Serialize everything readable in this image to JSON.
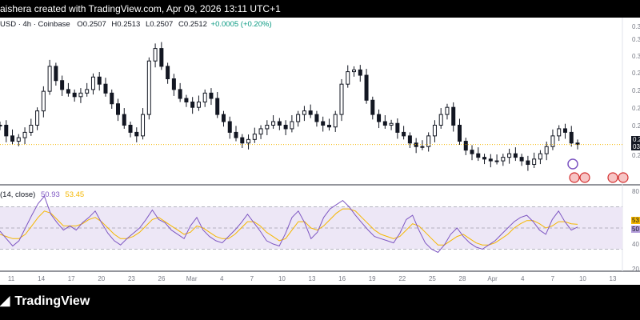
{
  "header": {
    "text": "aishera created with TradingView.com, Apr 09, 2026 13:11 UTC+1"
  },
  "legend": {
    "symbol": "USD · 4h · Coinbase",
    "open_label": "O",
    "open": "0.2507",
    "high_label": "H",
    "high": "0.2513",
    "low_label": "L",
    "low": "0.2507",
    "close_label": "C",
    "close": "0.2512",
    "change": "+0.0005 (+0.20%)"
  },
  "rsi_legend": {
    "name": "(14, close)",
    "rsi": "50.93",
    "ma": "53.45"
  },
  "price_tag": {
    "value": "0.2",
    "countdown": "03:"
  },
  "rsi_tags": {
    "ma": "53",
    "rsi": "50"
  },
  "footer": {
    "brand": "TradingView"
  },
  "colors": {
    "candles": "#131722",
    "rsi_line": "#7e57c2",
    "rsi_ma": "#f5b700",
    "rsi_band": "#ede7f6",
    "price_line": "#f5b700"
  },
  "chart_data": [
    {
      "type": "candlestick",
      "title": "",
      "price_axis_tick_labels": [
        "0.3",
        "0.3",
        "0.3",
        "0.2",
        "0.2",
        "0.2",
        "0.2",
        "0.2"
      ],
      "x_tick_labels": [
        "11",
        "14",
        "17",
        "20",
        "23",
        "26",
        "Mar",
        "4",
        "7",
        "10",
        "13",
        "16",
        "19",
        "22",
        "25",
        "28",
        "Apr",
        "4",
        "7",
        "10",
        "13"
      ],
      "close_trace": [
        0.262,
        0.256,
        0.253,
        0.255,
        0.258,
        0.262,
        0.27,
        0.281,
        0.295,
        0.287,
        0.282,
        0.28,
        0.278,
        0.28,
        0.282,
        0.289,
        0.285,
        0.28,
        0.274,
        0.268,
        0.262,
        0.258,
        0.256,
        0.268,
        0.298,
        0.305,
        0.295,
        0.288,
        0.282,
        0.277,
        0.275,
        0.272,
        0.275,
        0.28,
        0.277,
        0.268,
        0.264,
        0.258,
        0.255,
        0.252,
        0.254,
        0.257,
        0.26,
        0.262,
        0.264,
        0.262,
        0.26,
        0.264,
        0.268,
        0.27,
        0.268,
        0.264,
        0.262,
        0.261,
        0.268,
        0.285,
        0.292,
        0.293,
        0.29,
        0.276,
        0.268,
        0.264,
        0.262,
        0.263,
        0.258,
        0.256,
        0.252,
        0.25,
        0.25,
        0.256,
        0.262,
        0.268,
        0.272,
        0.262,
        0.253,
        0.248,
        0.246,
        0.244,
        0.243,
        0.242,
        0.242,
        0.244,
        0.246,
        0.244,
        0.242,
        0.24,
        0.243,
        0.246,
        0.25,
        0.256,
        0.26,
        0.258,
        0.252,
        0.2512
      ],
      "rsi": {
        "name": "",
        "length": 14,
        "source": "close",
        "value": 50.93,
        "ma_value": 53.45,
        "axis_tick_labels": [
          "80",
          "40",
          "20"
        ],
        "bands": [
          30,
          70
        ],
        "midline": 50,
        "trace": [
          47,
          40,
          33,
          38,
          50,
          62,
          73,
          80,
          63,
          55,
          48,
          52,
          48,
          55,
          60,
          66,
          55,
          45,
          38,
          34,
          40,
          45,
          50,
          58,
          67,
          58,
          55,
          48,
          44,
          40,
          52,
          60,
          48,
          42,
          38,
          36,
          42,
          48,
          55,
          63,
          55,
          47,
          38,
          35,
          33,
          45,
          60,
          66,
          55,
          40,
          46,
          60,
          68,
          72,
          76,
          70,
          62,
          55,
          48,
          42,
          40,
          38,
          36,
          45,
          58,
          62,
          48,
          36,
          30,
          27,
          34,
          44,
          50,
          42,
          36,
          32,
          30,
          34,
          38,
          44,
          50,
          56,
          60,
          62,
          56,
          48,
          44,
          58,
          66,
          56,
          48,
          50.93
        ],
        "ma_trace": [
          44,
          42,
          40,
          40,
          44,
          52,
          60,
          66,
          64,
          58,
          52,
          52,
          52,
          54,
          58,
          60,
          56,
          50,
          44,
          40,
          40,
          42,
          46,
          52,
          58,
          60,
          56,
          52,
          48,
          44,
          46,
          52,
          50,
          46,
          42,
          40,
          40,
          44,
          50,
          56,
          56,
          52,
          46,
          42,
          38,
          40,
          48,
          56,
          56,
          50,
          48,
          52,
          58,
          64,
          68,
          68,
          66,
          60,
          54,
          48,
          44,
          42,
          40,
          42,
          48,
          54,
          52,
          46,
          40,
          34,
          34,
          38,
          42,
          44,
          40,
          36,
          34,
          34,
          36,
          40,
          44,
          50,
          54,
          57,
          57,
          54,
          50,
          52,
          56,
          56,
          54,
          53.45
        ]
      }
    }
  ]
}
